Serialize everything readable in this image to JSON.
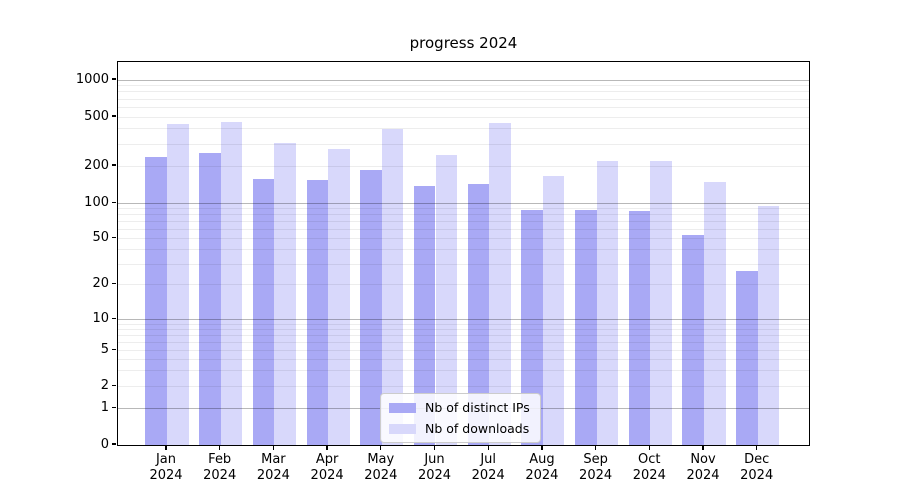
{
  "chart_data": {
    "type": "bar",
    "title": "progress 2024",
    "categories": [
      "Jan",
      "Feb",
      "Mar",
      "Apr",
      "May",
      "Jun",
      "Jul",
      "Aug",
      "Sep",
      "Oct",
      "Nov",
      "Dec"
    ],
    "category_year": "2024",
    "series": [
      {
        "name": "Nb of distinct IPs",
        "color": "#a9a9f5",
        "values": [
          235,
          255,
          158,
          153,
          185,
          138,
          143,
          87,
          87,
          86,
          54,
          26
        ]
      },
      {
        "name": "Nb of downloads",
        "color": "#d8d8fb",
        "values": [
          440,
          455,
          305,
          275,
          400,
          245,
          445,
          165,
          220,
          220,
          148,
          94
        ]
      }
    ],
    "yscale": "symlog",
    "yticks": [
      0,
      1,
      2,
      5,
      10,
      20,
      50,
      100,
      200,
      500,
      1000
    ],
    "ytick_major_gridlines": [
      1,
      10,
      100,
      1000
    ],
    "ylim": [
      0,
      1100
    ],
    "xlabel": "",
    "ylabel": "",
    "grid": true,
    "legend_position": "lower-center",
    "background_color": "#ffffff",
    "axis_color": "#000000"
  }
}
